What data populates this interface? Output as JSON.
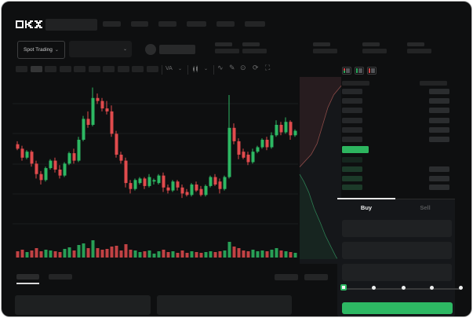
{
  "app": {
    "name": "OKX"
  },
  "colors": {
    "up": "#2db863",
    "down": "#e04b4d",
    "last_price": "#2db55f",
    "accent": "#2db863"
  },
  "header": {
    "search_placeholder": "",
    "nav_placeholder_count": 6
  },
  "subheader": {
    "market_selector_label": "Spot Trading",
    "chevron": "⌄",
    "stat_placeholder_count": 5
  },
  "toolbar": {
    "timeframe_count": 10,
    "active_timeframe": 1,
    "overlay_label": "VA",
    "icons": [
      "wave",
      "draw",
      "camera",
      "refresh",
      "fullscreen"
    ]
  },
  "chart_data": {
    "type": "candlestick",
    "title": "",
    "xlabel": "",
    "ylabel": "",
    "note": "no axis tick labels visible in screenshot; OHLC values normalized to 0-100 price scale, volume in px-height units",
    "grid": true,
    "candles": [
      [
        57,
        59,
        53,
        54,
        8
      ],
      [
        54,
        56,
        46,
        48,
        10
      ],
      [
        48,
        53,
        47,
        52,
        7
      ],
      [
        52,
        53,
        42,
        44,
        9
      ],
      [
        44,
        46,
        34,
        37,
        12
      ],
      [
        37,
        39,
        30,
        33,
        8
      ],
      [
        33,
        42,
        32,
        41,
        10
      ],
      [
        41,
        47,
        40,
        46,
        9
      ],
      [
        46,
        48,
        38,
        40,
        8
      ],
      [
        40,
        43,
        34,
        36,
        7
      ],
      [
        36,
        45,
        35,
        44,
        11
      ],
      [
        44,
        52,
        43,
        51,
        13
      ],
      [
        51,
        54,
        44,
        46,
        9
      ],
      [
        46,
        62,
        45,
        60,
        16
      ],
      [
        60,
        76,
        59,
        74,
        18
      ],
      [
        74,
        79,
        68,
        70,
        12
      ],
      [
        70,
        95,
        69,
        88,
        22
      ],
      [
        88,
        91,
        84,
        86,
        12
      ],
      [
        86,
        88,
        79,
        81,
        10
      ],
      [
        81,
        86,
        77,
        79,
        11
      ],
      [
        79,
        83,
        62,
        64,
        14
      ],
      [
        64,
        66,
        48,
        50,
        15
      ],
      [
        50,
        52,
        44,
        46,
        9
      ],
      [
        46,
        48,
        28,
        31,
        17
      ],
      [
        31,
        33,
        24,
        27,
        10
      ],
      [
        27,
        34,
        26,
        33,
        9
      ],
      [
        31,
        35,
        30,
        34,
        7
      ],
      [
        34,
        35,
        27,
        29,
        8
      ],
      [
        29,
        37,
        28,
        35,
        9
      ],
      [
        32,
        34,
        30,
        33,
        5
      ],
      [
        31,
        37,
        30,
        36,
        8
      ],
      [
        36,
        38,
        25,
        28,
        10
      ],
      [
        28,
        30,
        24,
        26,
        7
      ],
      [
        26,
        33,
        25,
        32,
        8
      ],
      [
        32,
        33,
        26,
        28,
        6
      ],
      [
        28,
        30,
        21,
        24,
        9
      ],
      [
        25,
        27,
        22,
        23,
        6
      ],
      [
        23,
        31,
        22,
        30,
        8
      ],
      [
        30,
        32,
        25,
        26,
        7
      ],
      [
        27,
        29,
        22,
        23,
        6
      ],
      [
        23,
        30,
        22,
        29,
        7
      ],
      [
        29,
        36,
        28,
        35,
        8
      ],
      [
        35,
        37,
        29,
        30,
        7
      ],
      [
        32,
        34,
        24,
        27,
        8
      ],
      [
        27,
        36,
        26,
        35,
        9
      ],
      [
        35,
        90,
        34,
        68,
        20
      ],
      [
        68,
        71,
        57,
        59,
        14
      ],
      [
        59,
        61,
        47,
        50,
        12
      ],
      [
        52,
        54,
        47,
        48,
        9
      ],
      [
        50,
        52,
        43,
        45,
        8
      ],
      [
        45,
        54,
        44,
        52,
        10
      ],
      [
        52,
        56,
        51,
        55,
        8
      ],
      [
        55,
        61,
        54,
        60,
        9
      ],
      [
        60,
        62,
        53,
        55,
        8
      ],
      [
        55,
        65,
        54,
        63,
        10
      ],
      [
        63,
        73,
        62,
        70,
        12
      ],
      [
        70,
        72,
        63,
        65,
        9
      ],
      [
        65,
        75,
        64,
        72,
        8
      ],
      [
        72,
        73,
        60,
        63,
        7
      ],
      [
        63,
        67,
        62,
        66,
        6
      ]
    ],
    "depth": {
      "asks_curve": [
        [
          1,
          0.04
        ],
        [
          0.82,
          0.09
        ],
        [
          0.68,
          0.16
        ],
        [
          0.55,
          0.26
        ],
        [
          0.42,
          0.36
        ],
        [
          0.28,
          0.42
        ],
        [
          0.12,
          0.46
        ],
        [
          0,
          0.49
        ]
      ],
      "bids_curve": [
        [
          0,
          0.53
        ],
        [
          0.1,
          0.57
        ],
        [
          0.22,
          0.63
        ],
        [
          0.35,
          0.72
        ],
        [
          0.5,
          0.8
        ],
        [
          0.62,
          0.87
        ],
        [
          0.75,
          0.93
        ],
        [
          0.88,
          0.99
        ],
        [
          0.92,
          1.0
        ]
      ]
    }
  },
  "orderbook": {
    "view_toggles": [
      "combined",
      "bids",
      "asks"
    ],
    "header_columns": 2,
    "asks_rows": 6,
    "bids_rows": 4,
    "bids_rows_with_amount": [
      1,
      2,
      3
    ],
    "last_price_color": "#2db55f"
  },
  "trade_panel": {
    "tabs": [
      {
        "label": "Buy",
        "active": true
      },
      {
        "label": "Sell",
        "active": false
      }
    ],
    "input_fields": 3,
    "slider_stops": 5,
    "slider_value_index": 0,
    "submit_label": ""
  },
  "footer": {
    "tab_placeholders": 2,
    "active_tab_index": 0,
    "right_placeholders": 2,
    "panel_placeholders": 2
  }
}
